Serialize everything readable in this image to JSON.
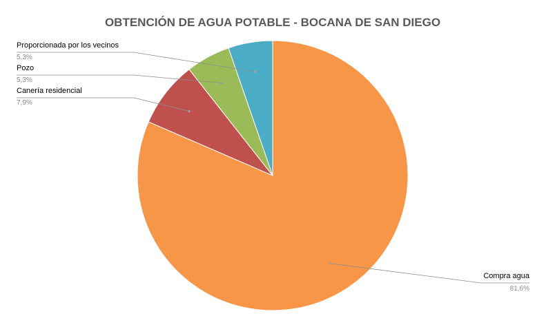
{
  "chart_data": {
    "type": "pie",
    "title": "OBTENCIÓN DE AGUA POTABLE - BOCANA DE SAN DIEGO",
    "slices": [
      {
        "label": "Compra agua",
        "value": 81.6,
        "value_text": "81,6%",
        "color": "#F79646"
      },
      {
        "label": "Canería residencial",
        "value": 7.9,
        "value_text": "7,9%",
        "color": "#C0504D"
      },
      {
        "label": "Pozo",
        "value": 5.3,
        "value_text": "5,3%",
        "color": "#9BBB59"
      },
      {
        "label": "Proporcionada por los vecinos",
        "value": 5.3,
        "value_text": "5,3%",
        "color": "#4BACC6"
      }
    ],
    "start": "12 o'clock",
    "direction": "clockwise",
    "legend": "none (leader-line data labels)"
  }
}
